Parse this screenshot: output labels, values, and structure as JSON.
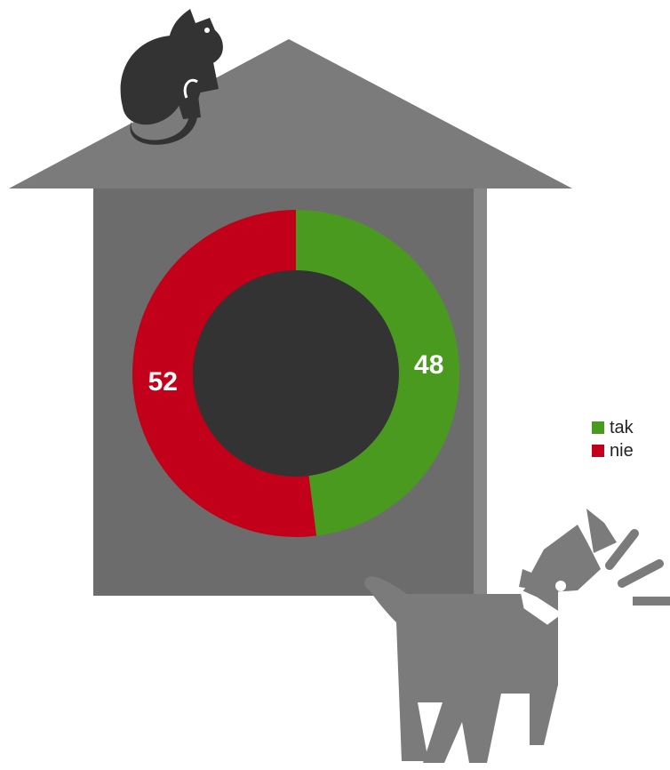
{
  "colors": {
    "roof": "#7b7b7b",
    "house_wall": "#6c6c6c",
    "house_wall_edge": "#878787",
    "donut_hole": "#333333",
    "cat": "#333333",
    "dog": "#7b7b7b",
    "label": "#ffffff"
  },
  "icons": [
    "cat-icon",
    "dog-icon",
    "house-icon"
  ],
  "chart_data": {
    "type": "pie",
    "donut": true,
    "start": "top, clockwise",
    "legend_placement": "right",
    "series": [
      {
        "name": "tak",
        "value": 48,
        "color": "#4a9a20"
      },
      {
        "name": "nie",
        "value": 52,
        "color": "#c3001a"
      }
    ]
  }
}
